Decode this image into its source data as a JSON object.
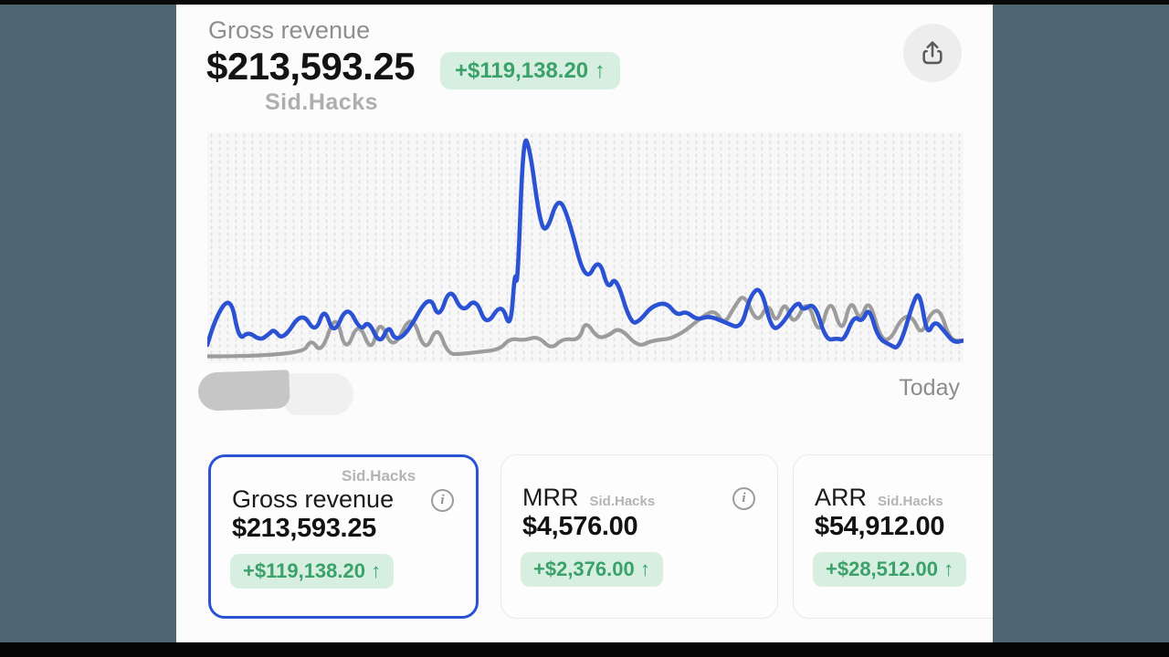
{
  "header": {
    "title": "Gross revenue",
    "value": "$213,593.25",
    "delta": "+$119,138.20 ↑",
    "watermark": "Sid.Hacks"
  },
  "chart": {
    "end_label": "Today",
    "start_label": "(redacted scribble)"
  },
  "chart_data": {
    "type": "line",
    "title": "Gross revenue over time",
    "x_start_label": "(redacted)",
    "x_end_label": "Today",
    "y_axis_visible": false,
    "normalization": "points are [x-percent-across-chart, value-percent-of-chart-height]; no numeric axis labels are shown in the image",
    "grid": "dotted vertical dash grid",
    "series": [
      {
        "id": "comparison",
        "label": "comparison period (gray)",
        "color": "#9c9c9c",
        "stroke_width": 4.2,
        "points": [
          [
            0,
            1
          ],
          [
            12.5,
            1
          ],
          [
            13.7,
            9
          ],
          [
            15.1,
            2
          ],
          [
            17,
            21
          ],
          [
            18.3,
            2
          ],
          [
            20,
            17
          ],
          [
            21.7,
            2
          ],
          [
            22.8,
            18
          ],
          [
            24.6,
            3
          ],
          [
            27,
            21
          ],
          [
            28.8,
            2
          ],
          [
            30.4,
            15
          ],
          [
            31.8,
            2
          ],
          [
            33.5,
            2
          ],
          [
            36,
            3
          ],
          [
            38.7,
            4
          ],
          [
            40,
            9
          ],
          [
            41.9,
            8
          ],
          [
            43.7,
            10
          ],
          [
            45.5,
            4
          ],
          [
            47,
            9
          ],
          [
            49.2,
            8
          ],
          [
            50,
            17
          ],
          [
            51.6,
            9
          ],
          [
            53,
            10
          ],
          [
            54.5,
            14
          ],
          [
            57,
            5
          ],
          [
            58.7,
            8
          ],
          [
            62,
            9
          ],
          [
            66,
            20
          ],
          [
            67.2,
            21
          ],
          [
            68.4,
            15
          ],
          [
            69.7,
            23
          ],
          [
            71,
            29
          ],
          [
            72.7,
            15
          ],
          [
            74.2,
            25
          ],
          [
            75.2,
            15
          ],
          [
            76.4,
            26
          ],
          [
            77.5,
            14
          ],
          [
            79.4,
            27
          ],
          [
            80.9,
            9
          ],
          [
            82.4,
            28
          ],
          [
            83.9,
            10
          ],
          [
            85.1,
            27
          ],
          [
            86.3,
            16
          ],
          [
            87.5,
            27
          ],
          [
            89,
            9
          ],
          [
            90.3,
            8
          ],
          [
            91.8,
            18
          ],
          [
            93.2,
            19
          ],
          [
            94.4,
            10
          ],
          [
            95.6,
            20
          ],
          [
            96.9,
            22
          ],
          [
            98.2,
            8
          ],
          [
            100,
            8
          ]
        ]
      },
      {
        "id": "current",
        "label": "current period (blue)",
        "color": "#2b52d2",
        "stroke_width": 4.6,
        "points": [
          [
            0,
            6
          ],
          [
            1,
            18
          ],
          [
            3.1,
            28
          ],
          [
            4.2,
            8
          ],
          [
            5.4,
            12
          ],
          [
            7,
            8
          ],
          [
            8.2,
            11
          ],
          [
            8.8,
            13
          ],
          [
            10,
            8
          ],
          [
            12.5,
            21
          ],
          [
            14.3,
            11
          ],
          [
            15.5,
            23
          ],
          [
            16.7,
            10
          ],
          [
            18.5,
            24
          ],
          [
            20.3,
            12
          ],
          [
            21.3,
            17
          ],
          [
            22.8,
            6
          ],
          [
            24,
            15
          ],
          [
            24.8,
            8
          ],
          [
            26.4,
            11
          ],
          [
            29.4,
            29
          ],
          [
            30.6,
            17
          ],
          [
            32.1,
            32
          ],
          [
            33.7,
            20
          ],
          [
            35.5,
            27
          ],
          [
            36.9,
            14
          ],
          [
            38.9,
            25
          ],
          [
            40.1,
            12
          ],
          [
            40.7,
            40
          ],
          [
            41,
            30
          ],
          [
            41.8,
            100
          ],
          [
            42.7,
            92
          ],
          [
            43.9,
            62
          ],
          [
            44.8,
            55
          ],
          [
            46.4,
            72
          ],
          [
            47.8,
            62
          ],
          [
            50,
            33
          ],
          [
            51.8,
            45
          ],
          [
            53,
            30
          ],
          [
            54,
            37
          ],
          [
            56,
            15
          ],
          [
            57.3,
            17
          ],
          [
            58.7,
            23
          ],
          [
            60.7,
            25
          ],
          [
            62.1,
            19
          ],
          [
            63.3,
            21
          ],
          [
            64.8,
            17
          ],
          [
            66.3,
            19
          ],
          [
            68.5,
            16
          ],
          [
            70.6,
            13
          ],
          [
            71.8,
            28
          ],
          [
            73.2,
            32
          ],
          [
            74.6,
            13
          ],
          [
            75.8,
            14
          ],
          [
            78.1,
            26
          ],
          [
            78.7,
            21
          ],
          [
            80.3,
            25
          ],
          [
            81.8,
            8
          ],
          [
            83.3,
            9
          ],
          [
            84.2,
            8
          ],
          [
            85.5,
            19
          ],
          [
            86.6,
            16
          ],
          [
            87.5,
            23
          ],
          [
            88.7,
            9
          ],
          [
            90.3,
            6
          ],
          [
            91.5,
            4
          ],
          [
            93.6,
            28
          ],
          [
            94.3,
            28
          ],
          [
            95.2,
            10
          ],
          [
            96.2,
            17
          ],
          [
            97.5,
            12
          ],
          [
            98.7,
            7
          ],
          [
            100,
            8
          ]
        ]
      }
    ]
  },
  "cards": [
    {
      "title": "Gross revenue",
      "watermark": "Sid.Hacks",
      "value": "$213,593.25",
      "delta": "+$119,138.20 ↑",
      "selected": true
    },
    {
      "title": "MRR",
      "watermark": "Sid.Hacks",
      "value": "$4,576.00",
      "delta": "+$2,376.00 ↑",
      "selected": false
    },
    {
      "title": "ARR",
      "watermark": "Sid.Hacks",
      "value": "$54,912.00",
      "delta": "+$28,512.00 ↑",
      "selected": false
    }
  ],
  "icons": {
    "share": "share-upload",
    "info_glyph": "i"
  },
  "colors": {
    "backdrop_teal": "#4d6672",
    "letterbox_black": "#050505",
    "content_background": "#fcfcfc",
    "primary_line_blue": "#2b52d2",
    "comparison_line_gray": "#9c9c9c",
    "delta_badge_background": "#d7efe0",
    "delta_badge_text": "#3aa169",
    "selected_card_border": "#2b52d2",
    "muted_text": "#8e8e8e",
    "watermark_text": "#aeaeae"
  }
}
